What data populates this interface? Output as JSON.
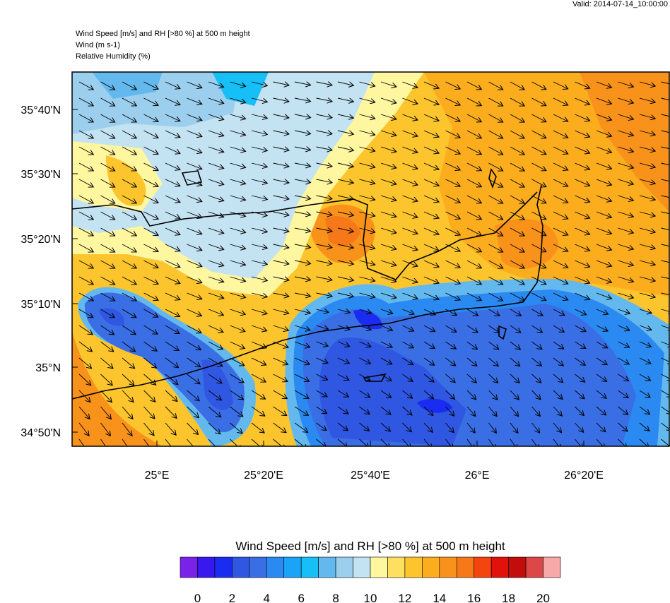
{
  "valid": "Valid: 2014-07-14_10:00:00",
  "header": {
    "lines": [
      "Wind Speed [m/s] and RH [>80 %] at 500 m height",
      "Wind   (m s-1)",
      "Relative Humidity   (%)"
    ]
  },
  "map": {
    "lat_labels": [
      "35°40'N",
      "35°30'N",
      "35°20'N",
      "35°10'N",
      "35°N",
      "34°50'N"
    ],
    "lon_labels": [
      "25°E",
      "25°20'E",
      "25°40'E",
      "26°E",
      "26°20'E"
    ]
  },
  "colorbar": {
    "title": "Wind Speed [m/s] and RH [>80 %] at 500 m height",
    "colors": [
      "#7a22ea",
      "#3719f0",
      "#1a2cf0",
      "#2f57e2",
      "#3a6ee4",
      "#2a8af2",
      "#1aa4f7",
      "#17bff7",
      "#63b9ee",
      "#9ccfee",
      "#c3e2f2",
      "#fff6a0",
      "#fde05f",
      "#fcc52d",
      "#fbad1e",
      "#f9921a",
      "#f67818",
      "#f2450f",
      "#e3110c",
      "#c30c0c",
      "#dc4848",
      "#f7a8a8"
    ],
    "labels": [
      "0",
      "2",
      "4",
      "6",
      "8",
      "10",
      "12",
      "14",
      "16",
      "18",
      "20"
    ]
  }
}
